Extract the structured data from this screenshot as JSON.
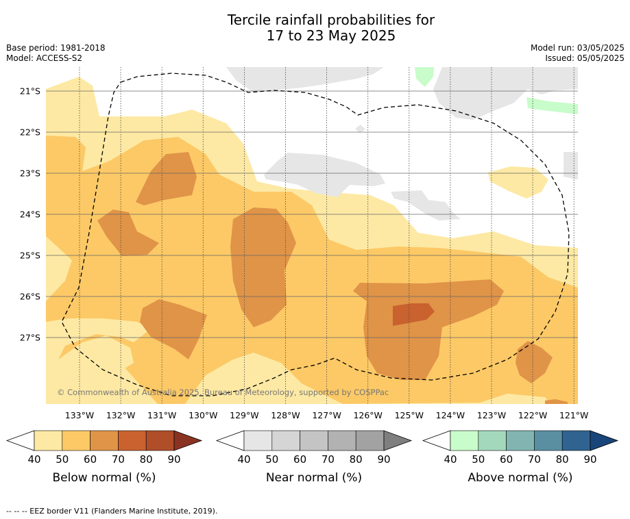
{
  "title_line1": "Tercile rainfall probabilities for",
  "title_line2": "17 to 23 May 2025",
  "base_period": "Base period: 1981-2018",
  "model": "Model: ACCESS-S2",
  "model_run": "Model run: 03/05/2025",
  "issued": "Issued: 05/05/2025",
  "copyright": "© Commonwealth of Australia 2025, Bureau of Meteorology, supported by COSPPac",
  "footer": "-- -- -- EEZ border V11 (Flanders Marine Institute, 2019).",
  "chart_data": {
    "type": "heatmap",
    "x_tick_labels": [
      "133°W",
      "132°W",
      "131°W",
      "130°W",
      "129°W",
      "128°W",
      "127°W",
      "126°W",
      "125°W",
      "124°W",
      "123°W",
      "122°W",
      "121°W"
    ],
    "y_tick_labels": [
      "21°S",
      "22°S",
      "23°S",
      "24°S",
      "25°S",
      "26°S",
      "27°S"
    ],
    "grid": true,
    "legends": [
      {
        "label": "Below normal (%)",
        "ticks": [
          "40",
          "50",
          "60",
          "70",
          "80",
          "90"
        ],
        "colors": [
          "#fde9a4",
          "#fcc966",
          "#e09448",
          "#c9622f",
          "#b04e2a",
          "#8b3322"
        ]
      },
      {
        "label": "Near normal (%)",
        "ticks": [
          "40",
          "50",
          "60",
          "70",
          "80",
          "90"
        ],
        "colors": [
          "#e6e6e6",
          "#d5d5d5",
          "#c4c4c4",
          "#b2b2b2",
          "#a2a2a2",
          "#7f7f7f"
        ]
      },
      {
        "label": "Above normal (%)",
        "ticks": [
          "40",
          "50",
          "60",
          "70",
          "80",
          "90"
        ],
        "colors": [
          "#c8fcca",
          "#a4d8bd",
          "#82b5b1",
          "#5a8fa2",
          "#316390",
          "#19457a"
        ]
      }
    ]
  }
}
